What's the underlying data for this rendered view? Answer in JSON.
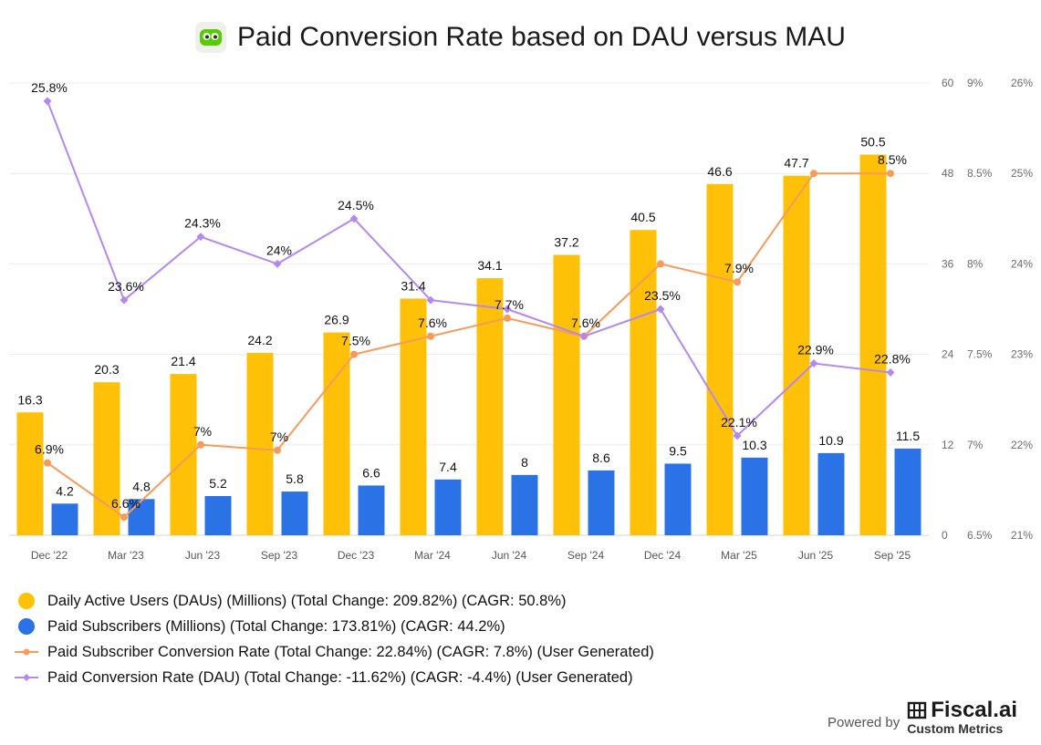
{
  "header": {
    "title": "Paid Conversion Rate based on DAU versus MAU"
  },
  "footer": {
    "powered_by": "Powered by",
    "brand": "Fiscal.ai",
    "brand_sub": "Custom Metrics"
  },
  "colors": {
    "dau": "#FFC107",
    "subs": "#2A72E5",
    "conv": "#F79A5A",
    "paid_dau": "#B388F0"
  },
  "chart_data": {
    "type": "bar",
    "title": "Paid Conversion Rate based on DAU versus MAU",
    "categories": [
      "Dec '22",
      "Mar '23",
      "Jun '23",
      "Sep '23",
      "Dec '23",
      "Mar '24",
      "Jun '24",
      "Sep '24",
      "Dec '24",
      "Mar '25",
      "Jun '25",
      "Sep '25"
    ],
    "axes": {
      "y1": {
        "ylim": [
          0,
          60
        ],
        "ticks": [
          "0",
          "12",
          "24",
          "36",
          "48",
          "60"
        ]
      },
      "y2": {
        "ylim": [
          6.5,
          9
        ],
        "ticks": [
          "6.5%",
          "7%",
          "7.5%",
          "8%",
          "8.5%",
          "9%"
        ]
      },
      "y3": {
        "ylim": [
          21,
          26
        ],
        "ticks": [
          "21%",
          "22%",
          "23%",
          "24%",
          "25%",
          "26%"
        ]
      }
    },
    "series": [
      {
        "name": "Daily Active Users (DAUs) (Millions) (Total Change: 209.82%) (CAGR: 50.8%)",
        "kind": "bar",
        "axis": "y1",
        "values": [
          16.3,
          20.3,
          21.4,
          24.2,
          26.9,
          31.4,
          34.1,
          37.2,
          40.5,
          46.6,
          47.7,
          50.5
        ],
        "labels": [
          "16.3",
          "20.3",
          "21.4",
          "24.2",
          "26.9",
          "31.4",
          "34.1",
          "37.2",
          "40.5",
          "46.6",
          "47.7",
          "50.5"
        ]
      },
      {
        "name": "Paid Subscribers (Millions) (Total Change: 173.81%) (CAGR: 44.2%)",
        "kind": "bar",
        "axis": "y1",
        "values": [
          4.2,
          4.8,
          5.2,
          5.8,
          6.6,
          7.4,
          8,
          8.6,
          9.5,
          10.3,
          10.9,
          11.5
        ],
        "labels": [
          "4.2",
          "4.8",
          "5.2",
          "5.8",
          "6.6",
          "7.4",
          "8",
          "8.6",
          "9.5",
          "10.3",
          "10.9",
          "11.5"
        ]
      },
      {
        "name": "Paid Subscriber Conversion Rate (Total Change: 22.84%) (CAGR: 7.8%) (User Generated)",
        "kind": "line",
        "axis": "y2",
        "values": [
          6.9,
          6.6,
          7.0,
          6.97,
          7.5,
          7.6,
          7.7,
          7.6,
          8.0,
          7.9,
          8.5,
          8.5
        ],
        "labels": [
          "6.9%",
          "6.6%",
          "7%",
          "7%",
          "7.5%",
          "7.6%",
          "7.7%",
          "7.6%",
          "",
          "7.9%",
          "",
          "8.5%"
        ]
      },
      {
        "name": "Paid Conversion Rate (DAU) (Total Change: -11.62%) (CAGR: -4.4%) (User Generated)",
        "kind": "line",
        "axis": "y3",
        "values": [
          25.8,
          23.6,
          24.3,
          24.0,
          24.5,
          23.6,
          23.5,
          23.2,
          23.5,
          22.1,
          22.9,
          22.8
        ],
        "labels": [
          "25.8%",
          "23.6%",
          "24.3%",
          "24%",
          "24.5%",
          "",
          "",
          "",
          "23.5%",
          "22.1%",
          "22.9%",
          "22.8%"
        ]
      }
    ]
  }
}
